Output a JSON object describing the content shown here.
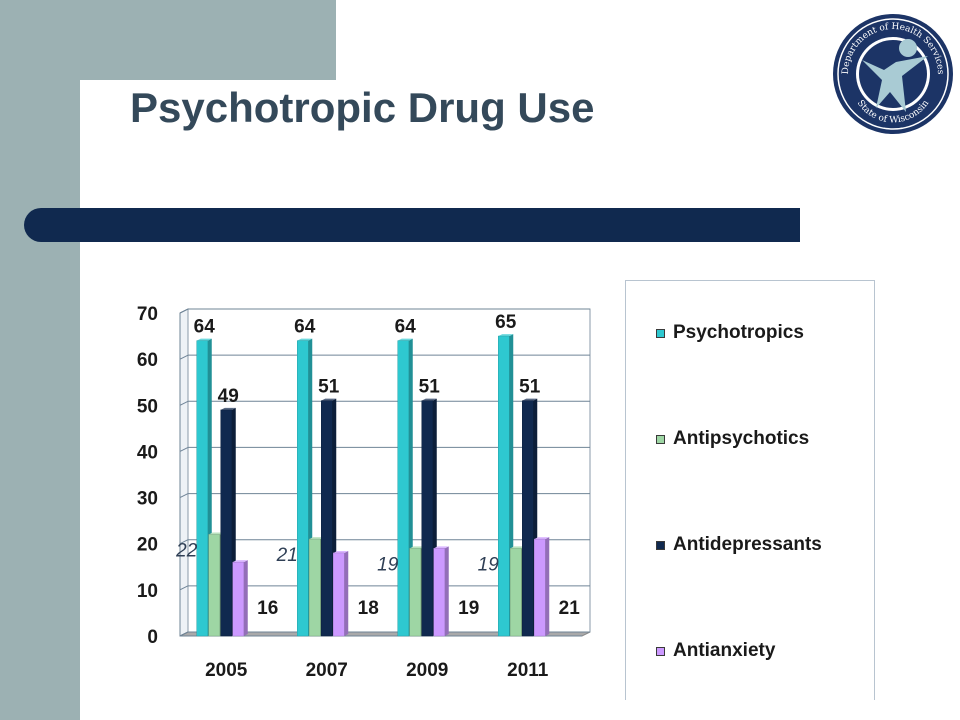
{
  "slide": {
    "title": "Psychotropic Drug Use"
  },
  "logo": {
    "top_text": "Department of Health Services",
    "bottom_text": "State of Wisconsin"
  },
  "colors": {
    "side_panel": "#9cb1b3",
    "divider": "#10294f",
    "title": "#34495a"
  },
  "chart_data": {
    "type": "bar",
    "style": "3d-clustered-column",
    "categories": [
      "2005",
      "2007",
      "2009",
      "2011"
    ],
    "series": [
      {
        "name": "Psychotropics",
        "values": [
          64,
          64,
          64,
          65
        ],
        "color": "#2ec8d0"
      },
      {
        "name": "Antipsychotics",
        "values": [
          22,
          21,
          19,
          19
        ],
        "color": "#9ed6a4"
      },
      {
        "name": "Antidepressants",
        "values": [
          49,
          51,
          51,
          51
        ],
        "color": "#10294f"
      },
      {
        "name": "Antianxiety",
        "values": [
          16,
          18,
          19,
          21
        ],
        "color": "#cc99ff"
      }
    ],
    "yticks": [
      "0",
      "10",
      "20",
      "30",
      "40",
      "50",
      "60",
      "70"
    ],
    "ylim": [
      0,
      70
    ],
    "grid": true,
    "legend_position": "right"
  }
}
